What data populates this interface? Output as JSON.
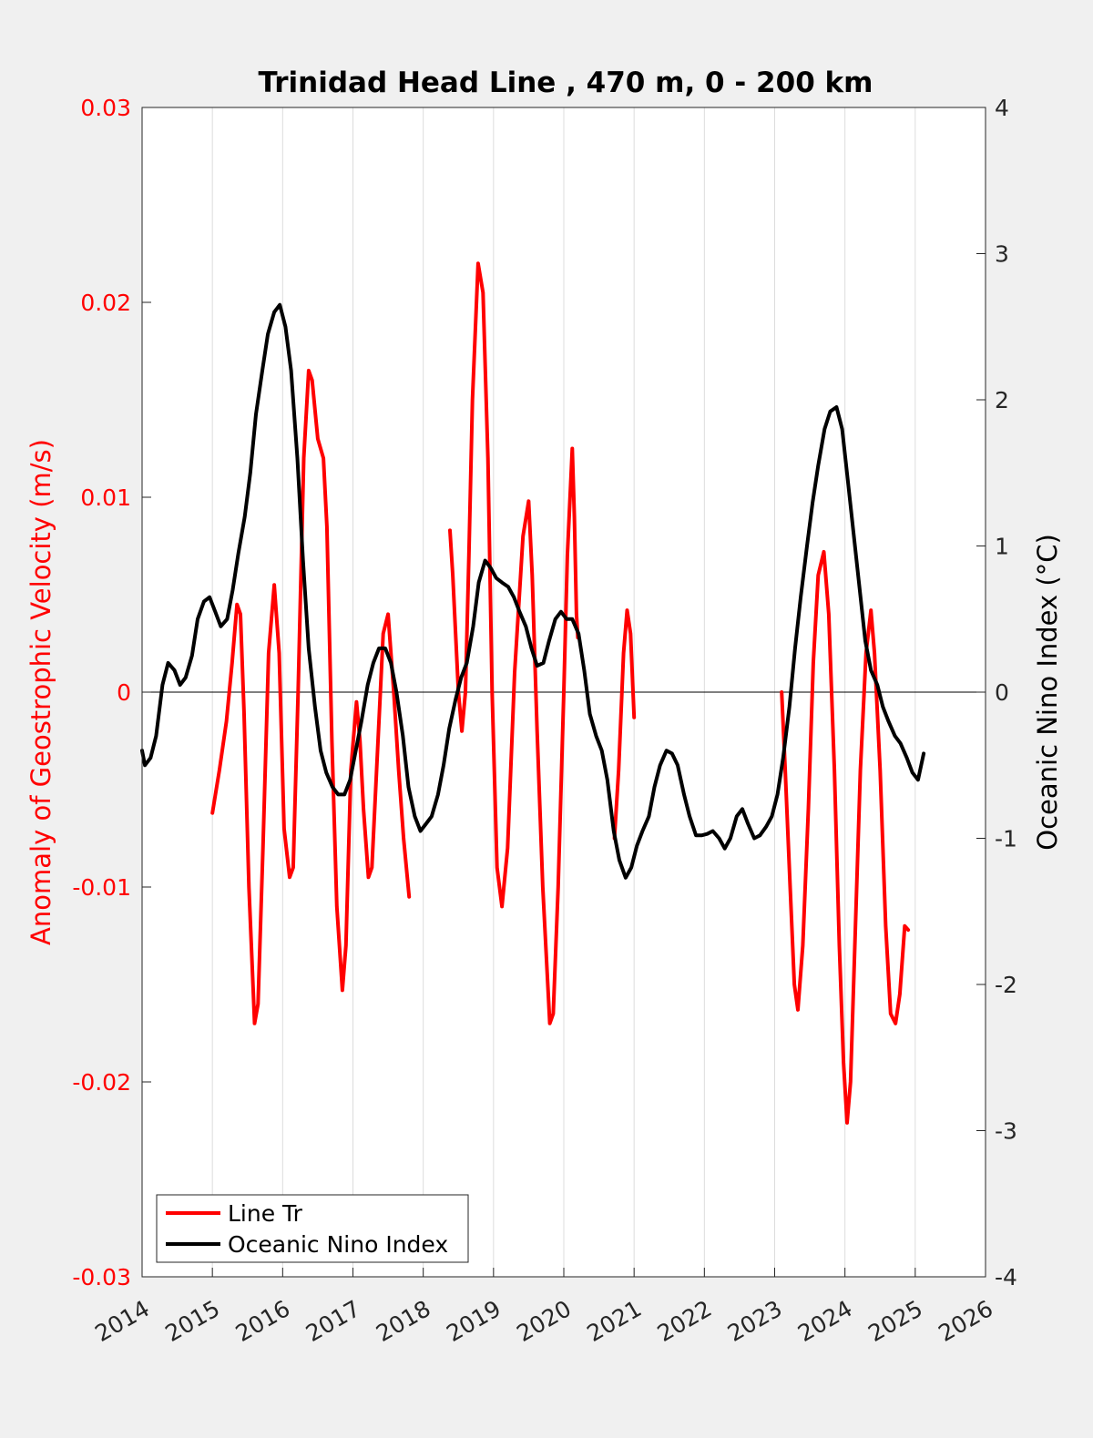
{
  "chart_data": {
    "type": "line",
    "title": "Trinidad Head Line , 470 m, 0 - 200 km",
    "xlabel": "",
    "ylabel_left": "Anomaly of Geostrophic Velocity (m/s)",
    "ylabel_right": "Oceanic Nino Index (°C)",
    "xlim": [
      2014,
      2026
    ],
    "ylim_left": [
      -0.03,
      0.03
    ],
    "ylim_right": [
      -4,
      4
    ],
    "x_ticks": [
      "2014",
      "2015",
      "2016",
      "2017",
      "2018",
      "2019",
      "2020",
      "2021",
      "2022",
      "2023",
      "2024",
      "2025",
      "2026"
    ],
    "y_left_ticks": [
      "-0.03",
      "-0.02",
      "-0.01",
      "0",
      "0.01",
      "0.02",
      "0.03"
    ],
    "y_right_ticks": [
      "-4",
      "-3",
      "-2",
      "-1",
      "0",
      "1",
      "2",
      "3",
      "4"
    ],
    "grid": "vertical",
    "legend_position": "bottom-left",
    "colors": {
      "left_axis": "#ff0000",
      "line_tr": "#ff0000",
      "oni": "#000000",
      "background": "#f0f0f0",
      "plot_area": "#ffffff",
      "grid": "#dcdcdc"
    },
    "series": [
      {
        "name": "Line Tr",
        "axis": "left",
        "segments": [
          [
            [
              2015.0,
              -0.0062
            ],
            [
              2015.1,
              -0.004
            ],
            [
              2015.2,
              -0.0015
            ],
            [
              2015.28,
              0.0015
            ],
            [
              2015.35,
              0.0045
            ],
            [
              2015.4,
              0.004
            ],
            [
              2015.45,
              -0.001
            ],
            [
              2015.52,
              -0.01
            ],
            [
              2015.6,
              -0.017
            ],
            [
              2015.65,
              -0.016
            ],
            [
              2015.72,
              -0.008
            ],
            [
              2015.8,
              0.002
            ],
            [
              2015.88,
              0.0055
            ],
            [
              2015.95,
              0.002
            ],
            [
              2016.02,
              -0.007
            ],
            [
              2016.1,
              -0.0095
            ],
            [
              2016.15,
              -0.009
            ],
            [
              2016.22,
              0.0
            ],
            [
              2016.3,
              0.012
            ],
            [
              2016.37,
              0.0165
            ],
            [
              2016.42,
              0.016
            ],
            [
              2016.5,
              0.013
            ],
            [
              2016.58,
              0.012
            ],
            [
              2016.63,
              0.0085
            ],
            [
              2016.7,
              -0.0025
            ],
            [
              2016.77,
              -0.011
            ],
            [
              2016.85,
              -0.0153
            ],
            [
              2016.9,
              -0.013
            ],
            [
              2016.97,
              -0.004
            ],
            [
              2017.05,
              -0.0005
            ],
            [
              2017.1,
              -0.0025
            ],
            [
              2017.15,
              -0.006
            ],
            [
              2017.22,
              -0.0095
            ],
            [
              2017.27,
              -0.009
            ],
            [
              2017.35,
              -0.003
            ],
            [
              2017.43,
              0.003
            ],
            [
              2017.5,
              0.004
            ],
            [
              2017.58,
              0.0
            ],
            [
              2017.65,
              -0.004
            ],
            [
              2017.72,
              -0.0075
            ],
            [
              2017.8,
              -0.0105
            ]
          ],
          [
            [
              2018.38,
              0.0083
            ],
            [
              2018.42,
              0.006
            ],
            [
              2018.5,
              0.0
            ],
            [
              2018.55,
              -0.002
            ],
            [
              2018.6,
              0.0
            ],
            [
              2018.65,
              0.007
            ],
            [
              2018.7,
              0.015
            ],
            [
              2018.78,
              0.022
            ],
            [
              2018.85,
              0.0205
            ],
            [
              2018.92,
              0.012
            ],
            [
              2018.98,
              0.0
            ],
            [
              2019.05,
              -0.009
            ],
            [
              2019.12,
              -0.011
            ],
            [
              2019.2,
              -0.008
            ],
            [
              2019.3,
              0.001
            ],
            [
              2019.42,
              0.008
            ],
            [
              2019.5,
              0.0098
            ],
            [
              2019.55,
              0.006
            ],
            [
              2019.62,
              -0.002
            ],
            [
              2019.7,
              -0.01
            ],
            [
              2019.8,
              -0.017
            ],
            [
              2019.85,
              -0.0165
            ],
            [
              2019.92,
              -0.01
            ],
            [
              2020.0,
              0.0
            ],
            [
              2020.05,
              0.007
            ],
            [
              2020.12,
              0.0125
            ],
            [
              2020.15,
              0.009
            ],
            [
              2020.18,
              0.004
            ],
            [
              2020.2,
              0.0028
            ]
          ],
          [
            [
              2020.72,
              -0.0075
            ],
            [
              2020.78,
              -0.004
            ],
            [
              2020.85,
              0.002
            ],
            [
              2020.9,
              0.0042
            ],
            [
              2020.95,
              0.003
            ],
            [
              2021.0,
              -0.0013
            ]
          ]
        ]
      },
      {
        "name": "Line Tr",
        "axis": "left",
        "segments": [
          [
            [
              2023.1,
              0.0
            ],
            [
              2023.15,
              -0.004
            ],
            [
              2023.22,
              -0.01
            ],
            [
              2023.28,
              -0.015
            ],
            [
              2023.33,
              -0.0163
            ],
            [
              2023.4,
              -0.013
            ],
            [
              2023.48,
              -0.006
            ],
            [
              2023.55,
              0.0015
            ],
            [
              2023.62,
              0.006
            ],
            [
              2023.7,
              0.0072
            ],
            [
              2023.77,
              0.004
            ],
            [
              2023.85,
              -0.004
            ],
            [
              2023.92,
              -0.013
            ],
            [
              2023.98,
              -0.019
            ],
            [
              2024.03,
              -0.0221
            ],
            [
              2024.08,
              -0.02
            ],
            [
              2024.15,
              -0.012
            ],
            [
              2024.22,
              -0.004
            ],
            [
              2024.3,
              0.002
            ],
            [
              2024.37,
              0.0042
            ],
            [
              2024.42,
              0.002
            ],
            [
              2024.5,
              -0.004
            ],
            [
              2024.58,
              -0.012
            ],
            [
              2024.65,
              -0.0165
            ],
            [
              2024.72,
              -0.017
            ],
            [
              2024.78,
              -0.0155
            ],
            [
              2024.85,
              -0.012
            ],
            [
              2024.9,
              -0.0122
            ]
          ]
        ]
      },
      {
        "name": "Oceanic Nino Index",
        "axis": "right",
        "segments": [
          [
            [
              2014.0,
              -0.4
            ],
            [
              2014.04,
              -0.5
            ],
            [
              2014.12,
              -0.45
            ],
            [
              2014.2,
              -0.3
            ],
            [
              2014.29,
              0.05
            ],
            [
              2014.37,
              0.2
            ],
            [
              2014.46,
              0.15
            ],
            [
              2014.54,
              0.05
            ],
            [
              2014.62,
              0.1
            ],
            [
              2014.71,
              0.25
            ],
            [
              2014.79,
              0.5
            ],
            [
              2014.88,
              0.62
            ],
            [
              2014.96,
              0.65
            ],
            [
              2015.04,
              0.55
            ],
            [
              2015.12,
              0.45
            ],
            [
              2015.21,
              0.5
            ],
            [
              2015.29,
              0.7
            ],
            [
              2015.37,
              0.95
            ],
            [
              2015.46,
              1.2
            ],
            [
              2015.54,
              1.5
            ],
            [
              2015.62,
              1.9
            ],
            [
              2015.71,
              2.2
            ],
            [
              2015.79,
              2.45
            ],
            [
              2015.88,
              2.6
            ],
            [
              2015.96,
              2.65
            ],
            [
              2016.04,
              2.5
            ],
            [
              2016.12,
              2.2
            ],
            [
              2016.21,
              1.6
            ],
            [
              2016.29,
              0.9
            ],
            [
              2016.37,
              0.3
            ],
            [
              2016.46,
              -0.1
            ],
            [
              2016.54,
              -0.4
            ],
            [
              2016.62,
              -0.55
            ],
            [
              2016.71,
              -0.65
            ],
            [
              2016.79,
              -0.7
            ],
            [
              2016.88,
              -0.7
            ],
            [
              2016.96,
              -0.6
            ],
            [
              2017.04,
              -0.4
            ],
            [
              2017.12,
              -0.2
            ],
            [
              2017.21,
              0.05
            ],
            [
              2017.29,
              0.2
            ],
            [
              2017.37,
              0.3
            ],
            [
              2017.46,
              0.3
            ],
            [
              2017.54,
              0.2
            ],
            [
              2017.62,
              0.0
            ],
            [
              2017.71,
              -0.3
            ],
            [
              2017.79,
              -0.65
            ],
            [
              2017.88,
              -0.85
            ],
            [
              2017.96,
              -0.95
            ],
            [
              2018.04,
              -0.9
            ],
            [
              2018.12,
              -0.85
            ],
            [
              2018.21,
              -0.7
            ],
            [
              2018.29,
              -0.5
            ],
            [
              2018.37,
              -0.25
            ],
            [
              2018.46,
              -0.05
            ],
            [
              2018.54,
              0.1
            ],
            [
              2018.62,
              0.2
            ],
            [
              2018.71,
              0.45
            ],
            [
              2018.79,
              0.75
            ],
            [
              2018.88,
              0.9
            ],
            [
              2018.96,
              0.85
            ],
            [
              2019.04,
              0.78
            ],
            [
              2019.12,
              0.75
            ],
            [
              2019.21,
              0.72
            ],
            [
              2019.29,
              0.65
            ],
            [
              2019.37,
              0.55
            ],
            [
              2019.46,
              0.45
            ],
            [
              2019.54,
              0.3
            ],
            [
              2019.62,
              0.18
            ],
            [
              2019.71,
              0.2
            ],
            [
              2019.79,
              0.35
            ],
            [
              2019.88,
              0.5
            ],
            [
              2019.96,
              0.55
            ],
            [
              2020.04,
              0.5
            ],
            [
              2020.12,
              0.5
            ],
            [
              2020.21,
              0.4
            ],
            [
              2020.29,
              0.15
            ],
            [
              2020.37,
              -0.15
            ],
            [
              2020.46,
              -0.3
            ],
            [
              2020.54,
              -0.4
            ],
            [
              2020.62,
              -0.6
            ],
            [
              2020.71,
              -0.95
            ],
            [
              2020.79,
              -1.15
            ],
            [
              2020.88,
              -1.27
            ],
            [
              2020.96,
              -1.2
            ],
            [
              2021.04,
              -1.05
            ],
            [
              2021.12,
              -0.95
            ],
            [
              2021.21,
              -0.85
            ],
            [
              2021.29,
              -0.65
            ],
            [
              2021.37,
              -0.5
            ],
            [
              2021.46,
              -0.4
            ],
            [
              2021.54,
              -0.42
            ],
            [
              2021.62,
              -0.5
            ],
            [
              2021.71,
              -0.7
            ],
            [
              2021.79,
              -0.85
            ],
            [
              2021.88,
              -0.98
            ],
            [
              2021.96,
              -0.98
            ],
            [
              2022.04,
              -0.97
            ],
            [
              2022.12,
              -0.95
            ],
            [
              2022.21,
              -1.0
            ],
            [
              2022.29,
              -1.07
            ],
            [
              2022.37,
              -1.0
            ],
            [
              2022.46,
              -0.85
            ],
            [
              2022.54,
              -0.8
            ],
            [
              2022.62,
              -0.9
            ],
            [
              2022.71,
              -1.0
            ],
            [
              2022.79,
              -0.98
            ],
            [
              2022.88,
              -0.92
            ],
            [
              2022.96,
              -0.85
            ],
            [
              2023.04,
              -0.7
            ],
            [
              2023.12,
              -0.45
            ],
            [
              2023.21,
              -0.1
            ],
            [
              2023.29,
              0.3
            ],
            [
              2023.37,
              0.65
            ],
            [
              2023.46,
              1.0
            ],
            [
              2023.54,
              1.3
            ],
            [
              2023.62,
              1.55
            ],
            [
              2023.71,
              1.8
            ],
            [
              2023.79,
              1.92
            ],
            [
              2023.88,
              1.95
            ],
            [
              2023.96,
              1.8
            ],
            [
              2024.04,
              1.45
            ],
            [
              2024.12,
              1.1
            ],
            [
              2024.21,
              0.7
            ],
            [
              2024.29,
              0.35
            ],
            [
              2024.37,
              0.15
            ],
            [
              2024.46,
              0.05
            ],
            [
              2024.54,
              -0.1
            ],
            [
              2024.62,
              -0.2
            ],
            [
              2024.71,
              -0.3
            ],
            [
              2024.79,
              -0.35
            ],
            [
              2024.88,
              -0.45
            ],
            [
              2024.96,
              -0.55
            ],
            [
              2025.04,
              -0.6
            ],
            [
              2025.12,
              -0.42
            ]
          ]
        ]
      }
    ],
    "legend": [
      {
        "label": "Line Tr",
        "color": "#ff0000"
      },
      {
        "label": "Oceanic Nino Index",
        "color": "#000000"
      }
    ]
  }
}
